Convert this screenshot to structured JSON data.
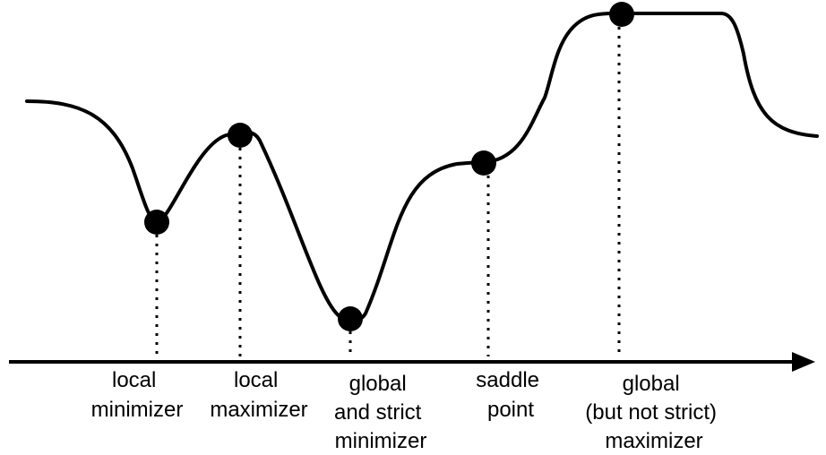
{
  "diagram": {
    "colors": {
      "stroke": "#000000",
      "point_fill": "#000000",
      "background": "#ffffff"
    },
    "axis": {
      "direction": "right",
      "has_arrowhead": true
    },
    "curve": {
      "style": "smooth",
      "stroke_color": "#000000"
    },
    "points": [
      {
        "label_lines": [
          "local",
          "minimizer"
        ]
      },
      {
        "label_lines": [
          "local",
          "maximizer"
        ]
      },
      {
        "label_lines": [
          "global",
          "and strict",
          "minimizer"
        ]
      },
      {
        "label_lines": [
          "saddle",
          "point"
        ]
      },
      {
        "label_lines": [
          "global",
          "(but not strict)",
          "maximizer"
        ]
      }
    ]
  }
}
